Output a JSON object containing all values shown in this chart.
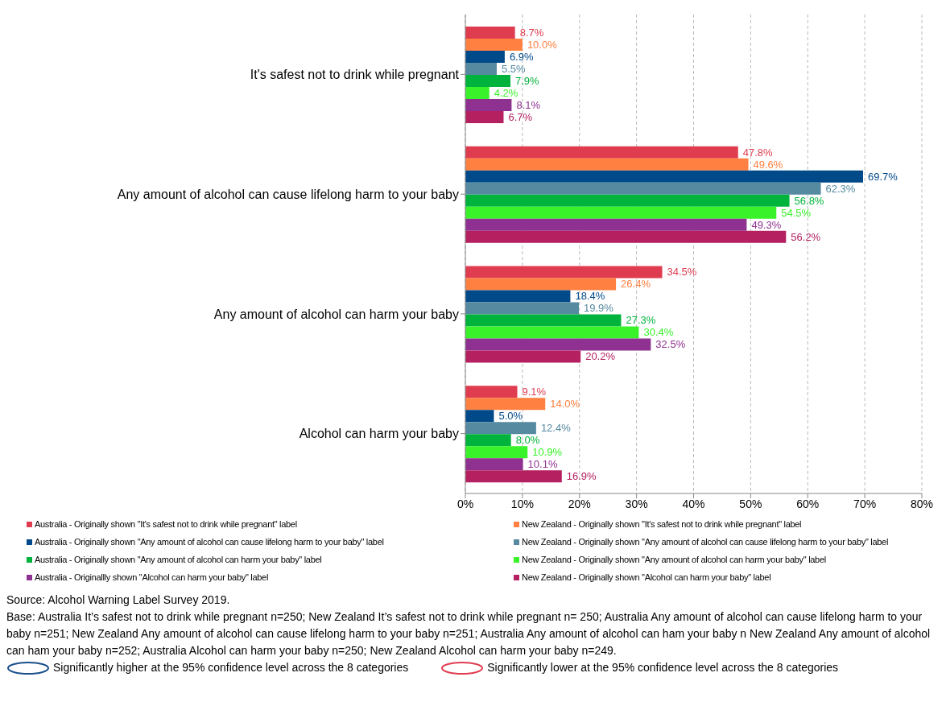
{
  "chart_data": {
    "type": "bar",
    "orientation": "horizontal",
    "categories": [
      "It's safest not to drink while pregnant",
      "Any amount of alcohol can cause lifelong harm to your baby",
      "Any amount of alcohol can harm your baby",
      "Alcohol can harm your baby"
    ],
    "series": [
      {
        "name": "Australia - Originally shown \"It's safest not to drink while pregnant\" label",
        "color": "#e03c50",
        "values": [
          8.7,
          47.8,
          34.5,
          9.1
        ],
        "value_labels": [
          "8.7%",
          "47.8%",
          "34.5%",
          "9.1%"
        ]
      },
      {
        "name": "New Zealand - Originally shown \"It's safest not to drink while pregnant\" label",
        "color": "#ff8040",
        "values": [
          10.0,
          49.6,
          26.4,
          14.0
        ],
        "value_labels": [
          "10.0%",
          "49.6%",
          "26.4%",
          "14.0%"
        ]
      },
      {
        "name": "Australia - Originally shown \"Any amount of alcohol can cause lifelong harm to your baby\" label",
        "color": "#004a8a",
        "values": [
          6.9,
          69.7,
          18.4,
          5.0
        ],
        "value_labels": [
          "6.9%",
          "69.7%",
          "18.4%",
          "5.0%"
        ]
      },
      {
        "name": "New Zealand - Originally shown \"Any amount of alcohol can cause lifelong harm to your baby\" label",
        "color": "#568aa0",
        "values": [
          5.5,
          62.3,
          19.9,
          12.4
        ],
        "value_labels": [
          "5.5%",
          "62.3%",
          "19.9%",
          "12.4%"
        ]
      },
      {
        "name": "Australia - Originally shown \"Any amount of alcohol can harm your baby\" label",
        "color": "#00b33c",
        "values": [
          7.9,
          56.8,
          27.3,
          8.0
        ],
        "value_labels": [
          "7.9%",
          "56.8%",
          "27.3%",
          "8.0%"
        ]
      },
      {
        "name": "New Zealand - Originally shown \"Any amount of alcohol can harm your baby\" label",
        "color": "#39f22a",
        "values": [
          4.2,
          54.5,
          30.4,
          10.9
        ],
        "value_labels": [
          "4.2%",
          "54.5%",
          "30.4%",
          "10.9%"
        ]
      },
      {
        "name": "Australia - Originallly shown \"Alcohol can harm your baby\" label",
        "color": "#8e3190",
        "values": [
          8.1,
          49.3,
          32.5,
          10.1
        ],
        "value_labels": [
          "8.1%",
          "49.3%",
          "32.5%",
          "10.1%"
        ]
      },
      {
        "name": "New Zealand - Originally shown \"Alcohol can harm your baby\" label",
        "color": "#b52060",
        "values": [
          6.7,
          56.2,
          20.2,
          16.9
        ],
        "value_labels": [
          "6.7%",
          "56.2%",
          "20.2%",
          "16.9%"
        ]
      }
    ],
    "xlim": [
      0,
      80
    ],
    "xticks": [
      {
        "value": 0,
        "label": "0%"
      },
      {
        "value": 10,
        "label": "10%"
      },
      {
        "value": 20,
        "label": "20%"
      },
      {
        "value": 30,
        "label": "30%"
      },
      {
        "value": 40,
        "label": "40%"
      },
      {
        "value": 50,
        "label": "50%"
      },
      {
        "value": 60,
        "label": "60%"
      },
      {
        "value": 70,
        "label": "70%"
      },
      {
        "value": 80,
        "label": "80%"
      }
    ],
    "grid": "x",
    "legend": "bottom",
    "annotations": [
      "Source:  Alcohol Warning Label Survey 2019.",
      "Base: Australia It’s safest not to drink while pregnant n=250; New Zealand It’s safest not to drink while pregnant n= 250; Australia Any amount of alcohol can cause lifelong harm to your baby n=251; New Zealand Any amount of alcohol can cause lifelong harm to your baby n=251; Australia Any amount of alcohol can ham your baby n New Zealand Any amount of alcohol can ham your baby n=252; Australia Alcohol can harm your baby n=250; New Zealand Alcohol can harm your baby n=249.",
      "Significantly higher at the 95% confidence level across the 8 categories",
      "Significantly lower at the 95% confidence level across the 8 categories"
    ]
  }
}
